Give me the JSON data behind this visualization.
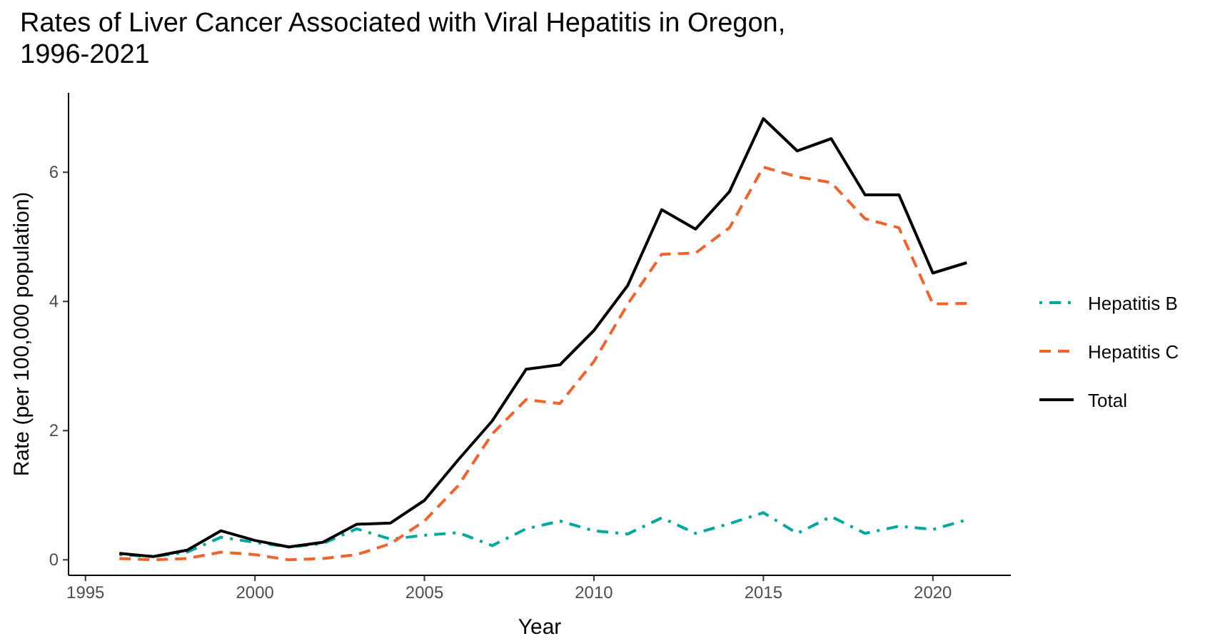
{
  "chart_data": {
    "type": "line",
    "title": "Rates of Liver Cancer Associated with Viral Hepatitis in Oregon,\n1996-2021",
    "xlabel": "Year",
    "ylabel": "Rate (per 100,000 population)",
    "x": [
      1996,
      1997,
      1998,
      1999,
      2000,
      2001,
      2002,
      2003,
      2004,
      2005,
      2006,
      2007,
      2008,
      2009,
      2010,
      2011,
      2012,
      2013,
      2014,
      2015,
      2016,
      2017,
      2018,
      2019,
      2020,
      2021
    ],
    "series": [
      {
        "name": "Hepatitis B",
        "color": "#00a99d",
        "line_style": "dotted",
        "values": [
          0.08,
          0.05,
          0.12,
          0.35,
          0.27,
          0.2,
          0.25,
          0.48,
          0.32,
          0.38,
          0.42,
          0.22,
          0.48,
          0.6,
          0.45,
          0.4,
          0.65,
          0.41,
          0.56,
          0.73,
          0.41,
          0.67,
          0.41,
          0.52,
          0.47,
          0.62
        ]
      },
      {
        "name": "Hepatitis C",
        "color": "#f4622b",
        "line_style": "dashed",
        "values": [
          0.02,
          0,
          0.02,
          0.12,
          0.08,
          0,
          0.02,
          0.08,
          0.25,
          0.6,
          1.15,
          1.95,
          2.48,
          2.42,
          3.07,
          3.96,
          4.73,
          4.75,
          5.14,
          6.08,
          5.93,
          5.84,
          5.28,
          5.14,
          3.96,
          3.97
        ]
      },
      {
        "name": "Total",
        "color": "#000000",
        "line_style": "solid",
        "values": [
          0.1,
          0.05,
          0.15,
          0.45,
          0.3,
          0.2,
          0.27,
          0.55,
          0.57,
          0.92,
          1.55,
          2.15,
          2.95,
          3.02,
          3.55,
          4.25,
          5.42,
          5.12,
          5.7,
          6.83,
          6.33,
          6.52,
          5.65,
          5.65,
          4.44,
          4.6
        ]
      }
    ],
    "xlim": [
      1994.5,
      2022.3
    ],
    "xticks": [
      1995,
      2000,
      2005,
      2010,
      2015,
      2020
    ],
    "ylim": [
      -0.24,
      7.23
    ],
    "yticks": [
      0,
      2,
      4,
      6
    ],
    "grid": false,
    "legend": "right",
    "marker": "none"
  }
}
